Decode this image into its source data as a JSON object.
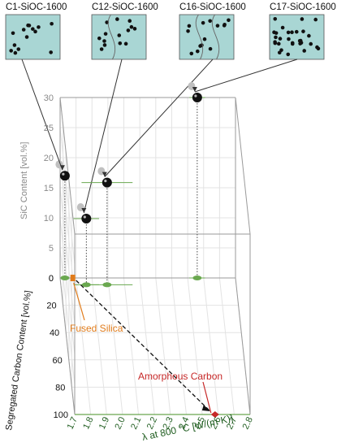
{
  "panels": [
    {
      "title": "C1-SiOC-1600",
      "channels": 0
    },
    {
      "title": "C12-SiOC-1600",
      "channels": 1
    },
    {
      "title": "C16-SiOC-1600",
      "channels": 2
    },
    {
      "title": "C17-SiOC-1600",
      "channels": 0
    }
  ],
  "chart_data": {
    "type": "scatter",
    "projection": "3d",
    "xlabel": "λ at 800 °C [W/(m·K)]",
    "ylabel": "SiC Content [vol.%]",
    "zlabel": "Segregated Carbon Content [vol.%]",
    "x_ticks": [
      "1.7",
      "1.8",
      "1.9",
      "2.0",
      "2.1",
      "2.2",
      "2.3",
      "2.4",
      "2.5",
      "2.6",
      "2.7",
      "2.8"
    ],
    "y_ticks": [
      "0",
      "5",
      "10",
      "15",
      "20",
      "25",
      "30"
    ],
    "z_ticks": [
      "0",
      "20",
      "40",
      "60",
      "80",
      "100"
    ],
    "xlim": [
      1.7,
      2.8
    ],
    "ylim": [
      0,
      30
    ],
    "zlim": [
      0,
      100
    ],
    "grid": true,
    "colors": {
      "sample": "#111111",
      "projection": "#6aa84f",
      "shadow": "#c0c0c0",
      "fused": "#e07b1a",
      "amorphous": "#c62828",
      "panel_bg": "#a9d6d4"
    },
    "points": [
      {
        "sample": "C1-SiOC-1600",
        "sic": 17,
        "carbon": 0
      },
      {
        "sample": "C12-SiOC-1600",
        "sic": 11,
        "carbon": 5
      },
      {
        "sample": "C16-SiOC-1600",
        "sic": 17,
        "carbon": 5
      },
      {
        "sample": "C17-SiOC-1600",
        "sic": 30,
        "carbon": 0
      }
    ],
    "annotations": [
      {
        "label": "Fused Silica",
        "x": 1.78,
        "sic": 0,
        "carbon": 0
      },
      {
        "label": "Amorphous Carbon",
        "x": 2.58,
        "sic": 0,
        "carbon": 100
      }
    ]
  }
}
